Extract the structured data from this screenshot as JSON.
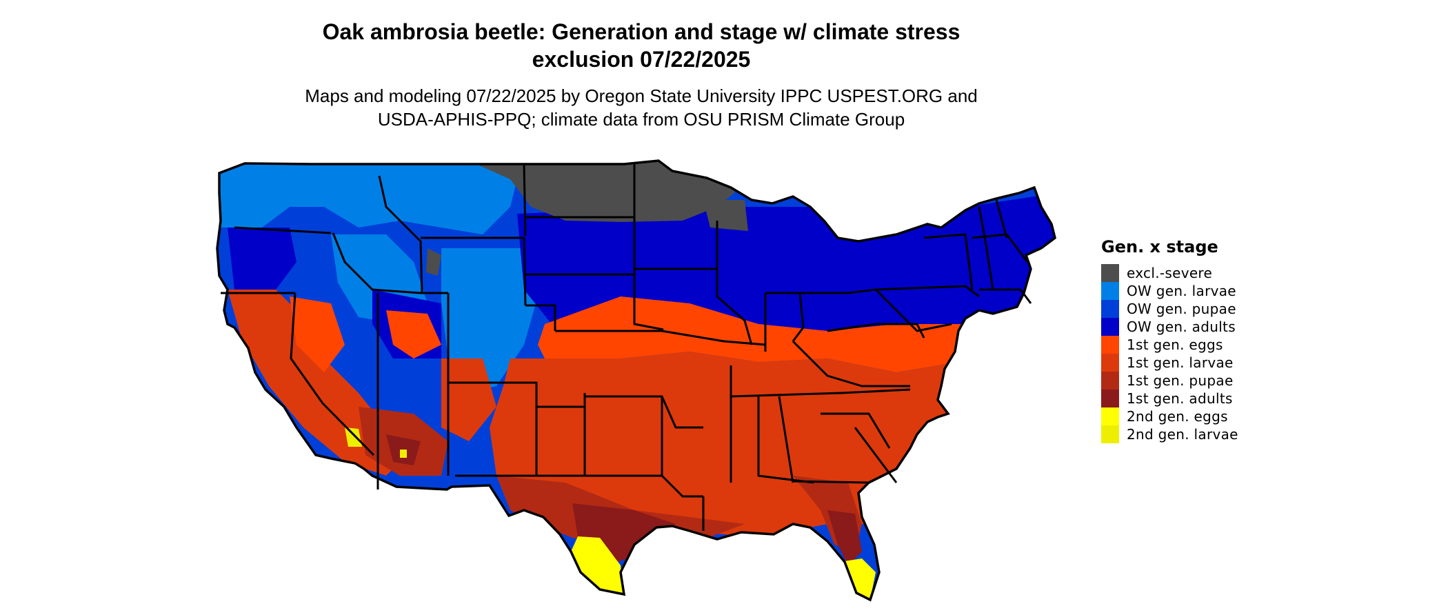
{
  "title_line1": "Oak ambrosia beetle: Generation and stage w/ climate stress",
  "title_line2": "exclusion 07/22/2025",
  "subtitle_line1": "Maps and modeling 07/22/2025 by Oregon State University IPPC USPEST.ORG and",
  "subtitle_line2": "USDA-APHIS-PPQ; climate data from OSU PRISM Climate Group",
  "legend": {
    "title": "Gen. x stage",
    "items": [
      {
        "label": "excl.-severe",
        "color": "#4d4d4d"
      },
      {
        "label": "OW gen. larvae",
        "color": "#0080e6"
      },
      {
        "label": "OW gen. pupae",
        "color": "#0040d9"
      },
      {
        "label": "OW gen. adults",
        "color": "#0000c8"
      },
      {
        "label": "1st gen. eggs",
        "color": "#ff4500"
      },
      {
        "label": "1st gen. larvae",
        "color": "#dc3a0c"
      },
      {
        "label": "1st gen. pupae",
        "color": "#b22a14"
      },
      {
        "label": "1st gen. adults",
        "color": "#8b1a1a"
      },
      {
        "label": "2nd gen. eggs",
        "color": "#ffff00"
      },
      {
        "label": "2nd gen. larvae",
        "color": "#eeee00"
      }
    ]
  }
}
